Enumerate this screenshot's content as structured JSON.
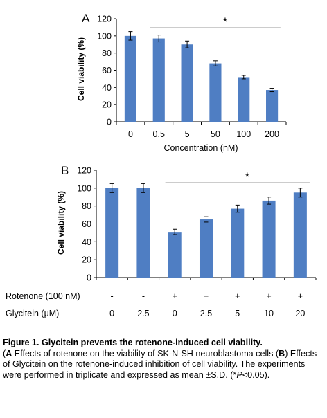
{
  "chart_data": [
    {
      "type": "bar",
      "panel_label": "A",
      "categories": [
        "0",
        "0.5",
        "5",
        "50",
        "100",
        "200"
      ],
      "values": [
        100,
        97,
        90,
        68,
        52,
        37
      ],
      "errors": [
        5,
        4,
        4,
        3,
        2,
        2
      ],
      "xlabel": "Concentration (nM)",
      "ylabel": "Cell viability (%)",
      "ylim": [
        0,
        120
      ],
      "yticks": [
        "0",
        "20",
        "40",
        "60",
        "80",
        "100",
        "120"
      ],
      "significance": "*",
      "significance_from_category": 1,
      "significance_to_category": 5,
      "bar_color": "#4f7ec3",
      "grid": false
    },
    {
      "type": "bar",
      "panel_label": "B",
      "categories": [
        "0-",
        "2.5-",
        "0+",
        "2.5+",
        "5+",
        "10+",
        "20+"
      ],
      "values": [
        100,
        100,
        51,
        65,
        77,
        86,
        95
      ],
      "errors": [
        5,
        5,
        3,
        3,
        4,
        4,
        5
      ],
      "ylabel": "Cell viability (%)",
      "ylim": [
        0,
        120
      ],
      "yticks": [
        "0",
        "20",
        "40",
        "60",
        "80",
        "100",
        "120"
      ],
      "significance": "*",
      "significance_from_category": 2,
      "significance_to_category": 6,
      "bar_color": "#4f7ec3",
      "grid": false,
      "treatment_rows": [
        {
          "label": "Rotenone (100 nM)",
          "values": [
            "-",
            "-",
            "+",
            "+",
            "+",
            "+",
            "+"
          ]
        },
        {
          "label": "Glycitein (μM)",
          "values": [
            "0",
            "2.5",
            "0",
            "2.5",
            "5",
            "10",
            "20"
          ]
        }
      ]
    }
  ],
  "caption": {
    "title": "Figure 1. Glycitein prevents the rotenone-induced cell viability.",
    "part_a_label": "A",
    "part_a_text": " Effects of rotenone on the viability of SK-N-SH neuroblastoma cells (",
    "part_b_label": "B",
    "part_b_text": ") Effects of Glycitein on the rotenone-induced inhibition of cell viability. The experiments were performed in triplicate and expressed as mean ±S.D. (*",
    "p_symbol": "P",
    "p_text": "<0.05)."
  }
}
